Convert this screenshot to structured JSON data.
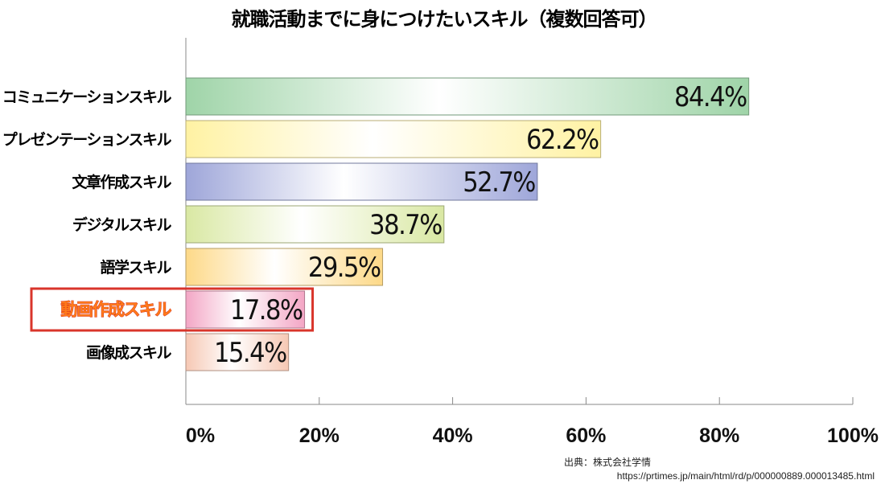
{
  "chart_data": {
    "type": "bar",
    "orientation": "horizontal",
    "title": "就職活動までに身につけたいスキル（複数回答可）",
    "categories": [
      "コミュニケーションスキル",
      "プレゼンテーションスキル",
      "文章作成スキル",
      "デジタルスキル",
      "語学スキル",
      "動画作成スキル",
      "画像成スキル"
    ],
    "values": [
      84.4,
      62.2,
      52.7,
      38.7,
      29.5,
      17.8,
      15.4
    ],
    "value_labels": [
      "84.4%",
      "62.2%",
      "52.7%",
      "38.7%",
      "29.5%",
      "17.8%",
      "15.4%"
    ],
    "bar_colors": [
      "#9fd4a8",
      "#fff2a3",
      "#9ea6d9",
      "#d9e8a3",
      "#fdd988",
      "#f3a6c5",
      "#f6c8b4"
    ],
    "highlighted_category": "動画作成スキル",
    "highlight_color": "#d9352b",
    "xlim": [
      0,
      100
    ],
    "x_ticks": [
      0,
      20,
      40,
      60,
      80,
      100
    ],
    "x_tick_labels": [
      "0%",
      "20%",
      "40%",
      "60%",
      "80%",
      "100%"
    ],
    "xlabel": "",
    "ylabel": "",
    "grid": false,
    "legend": false
  },
  "source": {
    "label": "出典：株式会社学情",
    "url": "https://prtimes.jp/main/html/rd/p/000000889.000013485.html"
  }
}
